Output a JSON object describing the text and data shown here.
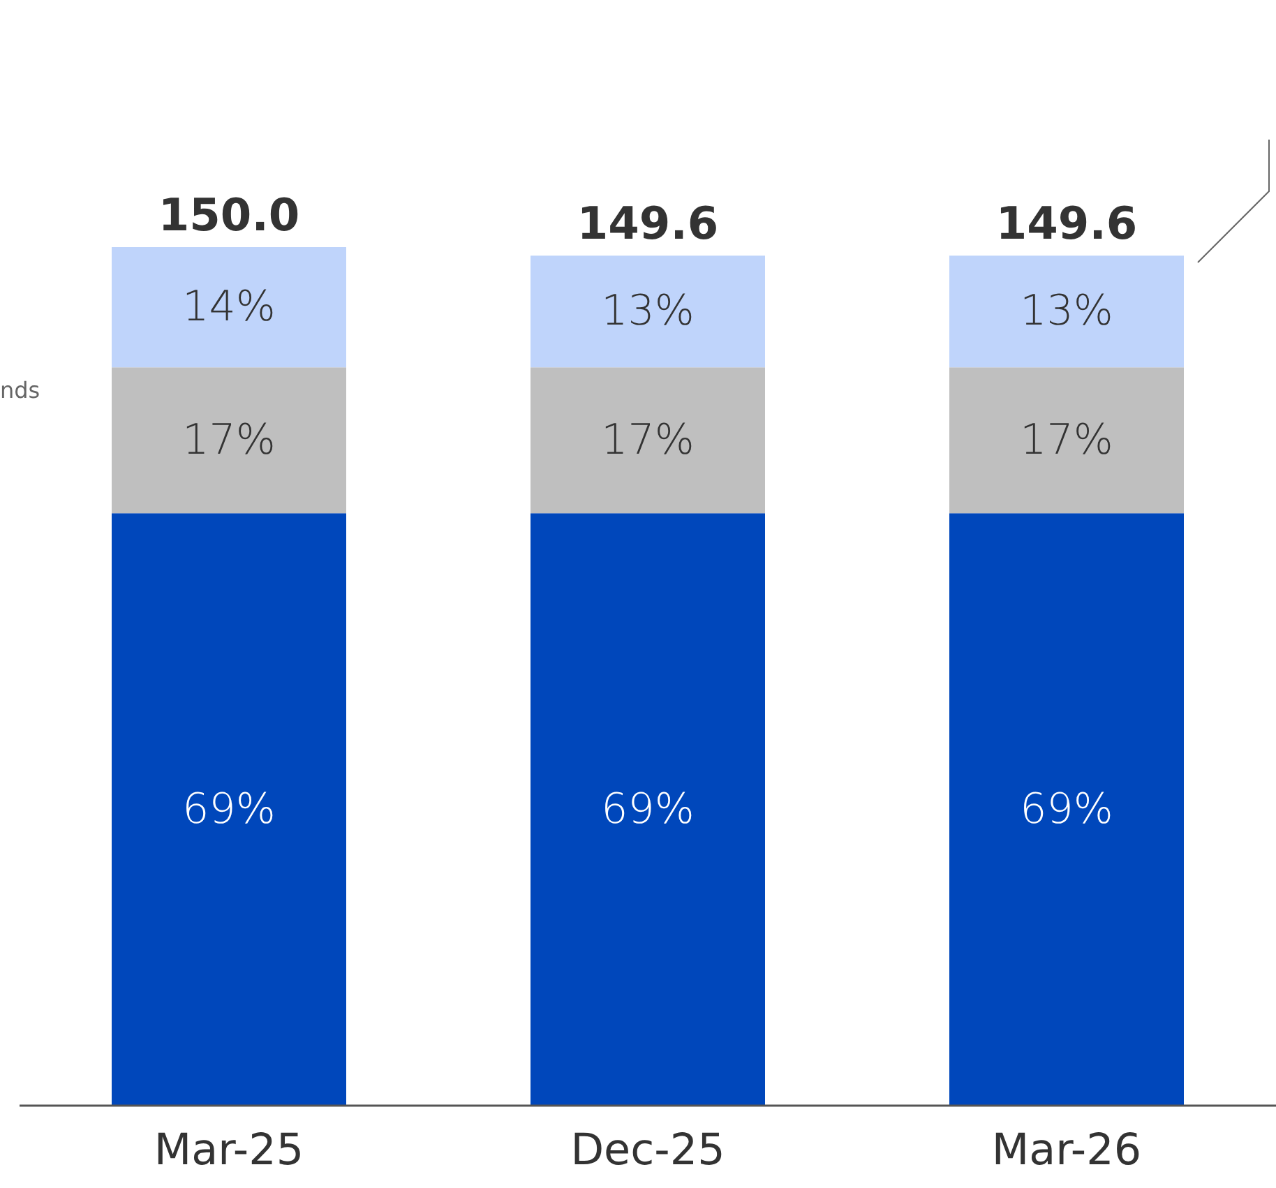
{
  "chart_data": {
    "type": "bar",
    "stacked": true,
    "categories": [
      "Mar-25",
      "Dec-25",
      "Mar-26"
    ],
    "series": [
      {
        "color": "#0047bb",
        "values": [
          69,
          69,
          69
        ],
        "value_labels": [
          "69%",
          "69%",
          "69%"
        ]
      },
      {
        "color": "#bfbfbf",
        "values": [
          17,
          17,
          17
        ],
        "value_labels": [
          "17%",
          "17%",
          "17%"
        ]
      },
      {
        "color": "#bfd4fb",
        "values": [
          14,
          13,
          13
        ],
        "value_labels": [
          "14%",
          "13%",
          "13%"
        ]
      }
    ],
    "tick_labels": "x",
    "grid": false,
    "legend": false,
    "annotations": [
      "nds",
      {
        "text": "150.0",
        "x": "Mar-25",
        "y": 100
      },
      {
        "text": "149.6",
        "x": "Dec-25",
        "y": 99
      },
      {
        "text": "149.6",
        "x": "Mar-26",
        "y": 99
      }
    ]
  }
}
